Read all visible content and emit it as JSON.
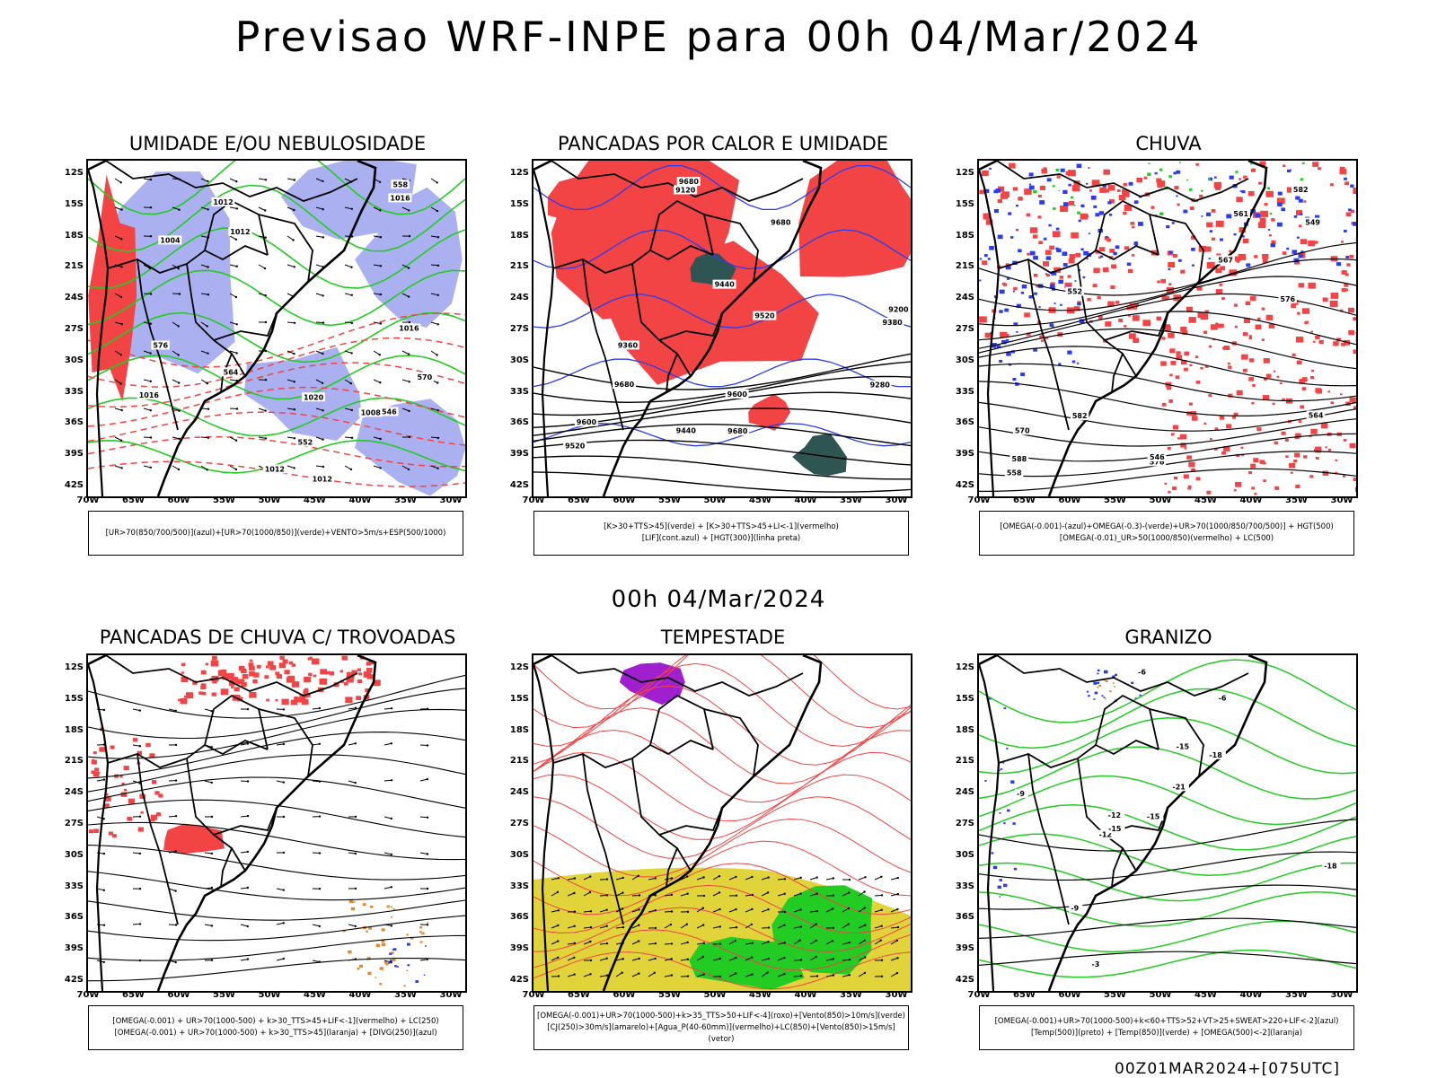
{
  "title": "Previsao WRF-INPE  para 00h 04/Mar/2024",
  "mid_label": "00h 04/Mar/2024",
  "footer": "00Z01MAR2024+[075UTC]",
  "lat_labels": [
    "12S",
    "15S",
    "18S",
    "21S",
    "24S",
    "27S",
    "30S",
    "33S",
    "36S",
    "39S",
    "42S"
  ],
  "lon_labels": [
    "70W",
    "65W",
    "60W",
    "55W",
    "50W",
    "45W",
    "40W",
    "35W",
    "30W"
  ],
  "colors": {
    "red": "#f24444",
    "blue": "#2b3cf0",
    "green": "#22cc22",
    "lavender": "#aab0f0",
    "darkteal": "#2f5552",
    "yellow": "#e0d43a",
    "purple": "#a020d0",
    "orange": "#e8862a"
  },
  "panels": [
    {
      "id": "umidade",
      "title": "UMIDADE E/OU NEBULOSIDADE",
      "legend": [
        "[UR>70(850/700/500)](azul)+[UR>70(1000/850)](verde)+VENTO>5m/s+ESP(500/1000)"
      ],
      "contour_labels": [
        "1012",
        "1012",
        "1012",
        "1016",
        "1020",
        "1016",
        "1012",
        "570",
        "576",
        "564",
        "558",
        "552",
        "546",
        "1004",
        "1008",
        "1016"
      ]
    },
    {
      "id": "pancadas-calor",
      "title": "PANCADAS POR CALOR E UMIDADE",
      "legend": [
        "[K>30+TTS>45](verde) + [K>30+TTS>45+LI<-1](vermelho)",
        "[LIF](cont.azul) + [HGT(300)](linha preta)"
      ],
      "contour_labels": [
        "9680",
        "9680",
        "9680",
        "9680",
        "9600",
        "9520",
        "9440",
        "9380",
        "9280",
        "9200",
        "9120",
        "9600",
        "9520",
        "9440",
        "9360"
      ]
    },
    {
      "id": "chuva",
      "title": "CHUVA",
      "legend": [
        "[OMEGA(-0.001)-(azul)+OMEGA(-0.3)-(verde)+UR>70(1000/850/700/500)] + HGT(500)",
        "[OMEGA(-0.01)_UR>50(1000/850)(vermelho) + LC(500)"
      ],
      "contour_labels": [
        "588",
        "582",
        "576",
        "570",
        "567",
        "564",
        "561",
        "558",
        "552",
        "549",
        "546",
        "582",
        "576"
      ]
    },
    {
      "id": "pancadas-trovoadas",
      "title": "PANCADAS DE CHUVA C/ TROVOADAS",
      "legend": [
        "[OMEGA(-0.001) + UR>70(1000-500) + k>30_TTS>45+LIF<-1](vermelho) + LC(250)",
        "[OMEGA(-0.001) + UR>70(1000-500) + k>30_TTS>45](laranja) + [DIVG(250)](azul)"
      ],
      "contour_labels": []
    },
    {
      "id": "tempestade",
      "title": "TEMPESTADE",
      "legend": [
        "[OMEGA(-0.001)+UR>70(1000-500)+k>35_TTS>50+LIF<-4](roxo)+[Vento(850)>10m/s](verde)",
        "[CJ(250)>30m/s](amarelo)+[Agua_P(40-60mm)](vermelho)+LC(850)+[Vento(850)>15m/s](vetor)"
      ],
      "contour_labels": []
    },
    {
      "id": "granizo",
      "title": "GRANIZO",
      "legend": [
        "[OMEGA(-0.001)+UR>70(1000-500)+k<60+TTS>52+VT>25+SWEAT>220+LIF<-2](azul)",
        "[Temp(500)](preto) + [Temp(850)](verde) + [OMEGA(500)<-2](laranja)"
      ],
      "contour_labels": [
        "-21",
        "-18",
        "-15",
        "-12",
        "-9",
        "-6",
        "-3",
        "-12",
        "-9",
        "-6",
        "-15",
        "-18",
        "-15"
      ]
    }
  ]
}
